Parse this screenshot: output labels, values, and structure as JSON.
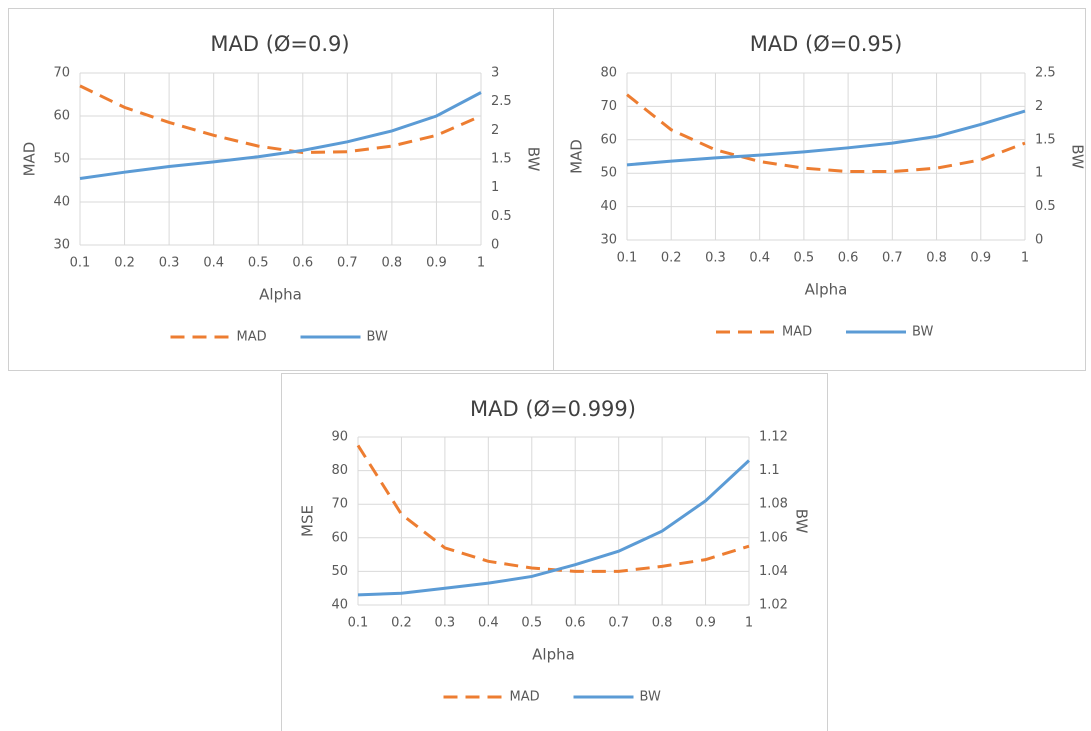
{
  "chart_data": [
    {
      "type": "line",
      "title": "MAD (Ø=0.9)",
      "xlabel": "Alpha",
      "ylabel": "MAD",
      "y2label": "BW",
      "x": [
        0.1,
        0.2,
        0.3,
        0.4,
        0.5,
        0.6,
        0.7,
        0.8,
        0.9,
        1
      ],
      "xlim": [
        0.1,
        1
      ],
      "xticks": [
        0.1,
        0.2,
        0.3,
        0.4,
        0.5,
        0.6,
        0.7,
        0.8,
        0.9,
        1
      ],
      "ylim": [
        30,
        70
      ],
      "yticks": [
        30,
        40,
        50,
        60,
        70
      ],
      "y2lim": [
        0,
        3
      ],
      "y2ticks": [
        0,
        0.5,
        1,
        1.5,
        2,
        2.5,
        3
      ],
      "grid": true,
      "legend": "bottom",
      "series": [
        {
          "name": "MAD",
          "color": "#ed7d31",
          "style": "dashed",
          "values": [
            67,
            62,
            58.5,
            55.5,
            53,
            51.5,
            51.7,
            53,
            55.5,
            60
          ]
        },
        {
          "name": "BW",
          "color": "#5b9bd5",
          "style": "solid",
          "axis": "y2",
          "values": [
            1.16,
            1.27,
            1.37,
            1.45,
            1.54,
            1.65,
            1.8,
            1.99,
            2.25,
            2.66
          ]
        }
      ]
    },
    {
      "type": "line",
      "title": "MAD (Ø=0.95)",
      "xlabel": "Alpha",
      "ylabel": "MAD",
      "y2label": "BW",
      "x": [
        0.1,
        0.2,
        0.3,
        0.4,
        0.5,
        0.6,
        0.7,
        0.8,
        0.9,
        1
      ],
      "xlim": [
        0.1,
        1
      ],
      "xticks": [
        0.1,
        0.2,
        0.3,
        0.4,
        0.5,
        0.6,
        0.7,
        0.8,
        0.9,
        1
      ],
      "ylim": [
        30,
        80
      ],
      "yticks": [
        30,
        40,
        50,
        60,
        70,
        80
      ],
      "y2lim": [
        0,
        2.5
      ],
      "y2ticks": [
        0,
        0.5,
        1,
        1.5,
        2,
        2.5
      ],
      "grid": true,
      "legend": "bottom",
      "series": [
        {
          "name": "MAD",
          "color": "#ed7d31",
          "style": "dashed",
          "values": [
            73.5,
            63,
            57,
            53.5,
            51.5,
            50.5,
            50.5,
            51.5,
            54,
            59
          ]
        },
        {
          "name": "BW",
          "color": "#5b9bd5",
          "style": "solid",
          "axis": "y2",
          "values": [
            1.125,
            1.18,
            1.23,
            1.27,
            1.32,
            1.38,
            1.45,
            1.55,
            1.73,
            1.93
          ]
        }
      ]
    },
    {
      "type": "line",
      "title": "MAD (Ø=0.999)",
      "xlabel": "Alpha",
      "ylabel": "MSE",
      "y2label": "BW",
      "x": [
        0.1,
        0.2,
        0.3,
        0.4,
        0.5,
        0.6,
        0.7,
        0.8,
        0.9,
        1
      ],
      "xlim": [
        0.1,
        1
      ],
      "xticks": [
        0.1,
        0.2,
        0.3,
        0.4,
        0.5,
        0.6,
        0.7,
        0.8,
        0.9,
        1
      ],
      "ylim": [
        40,
        90
      ],
      "yticks": [
        40,
        50,
        60,
        70,
        80,
        90
      ],
      "y2lim": [
        1.02,
        1.12
      ],
      "y2ticks": [
        1.02,
        1.04,
        1.06,
        1.08,
        1.1,
        1.12
      ],
      "grid": true,
      "legend": "bottom",
      "series": [
        {
          "name": "MAD",
          "color": "#ed7d31",
          "style": "dashed",
          "values": [
            87.5,
            67,
            57,
            53,
            51,
            50,
            50,
            51.5,
            53.5,
            57.5
          ]
        },
        {
          "name": "BW",
          "color": "#5b9bd5",
          "style": "solid",
          "axis": "y2",
          "values": [
            1.026,
            1.027,
            1.03,
            1.033,
            1.037,
            1.044,
            1.052,
            1.064,
            1.082,
            1.106
          ]
        }
      ]
    }
  ]
}
